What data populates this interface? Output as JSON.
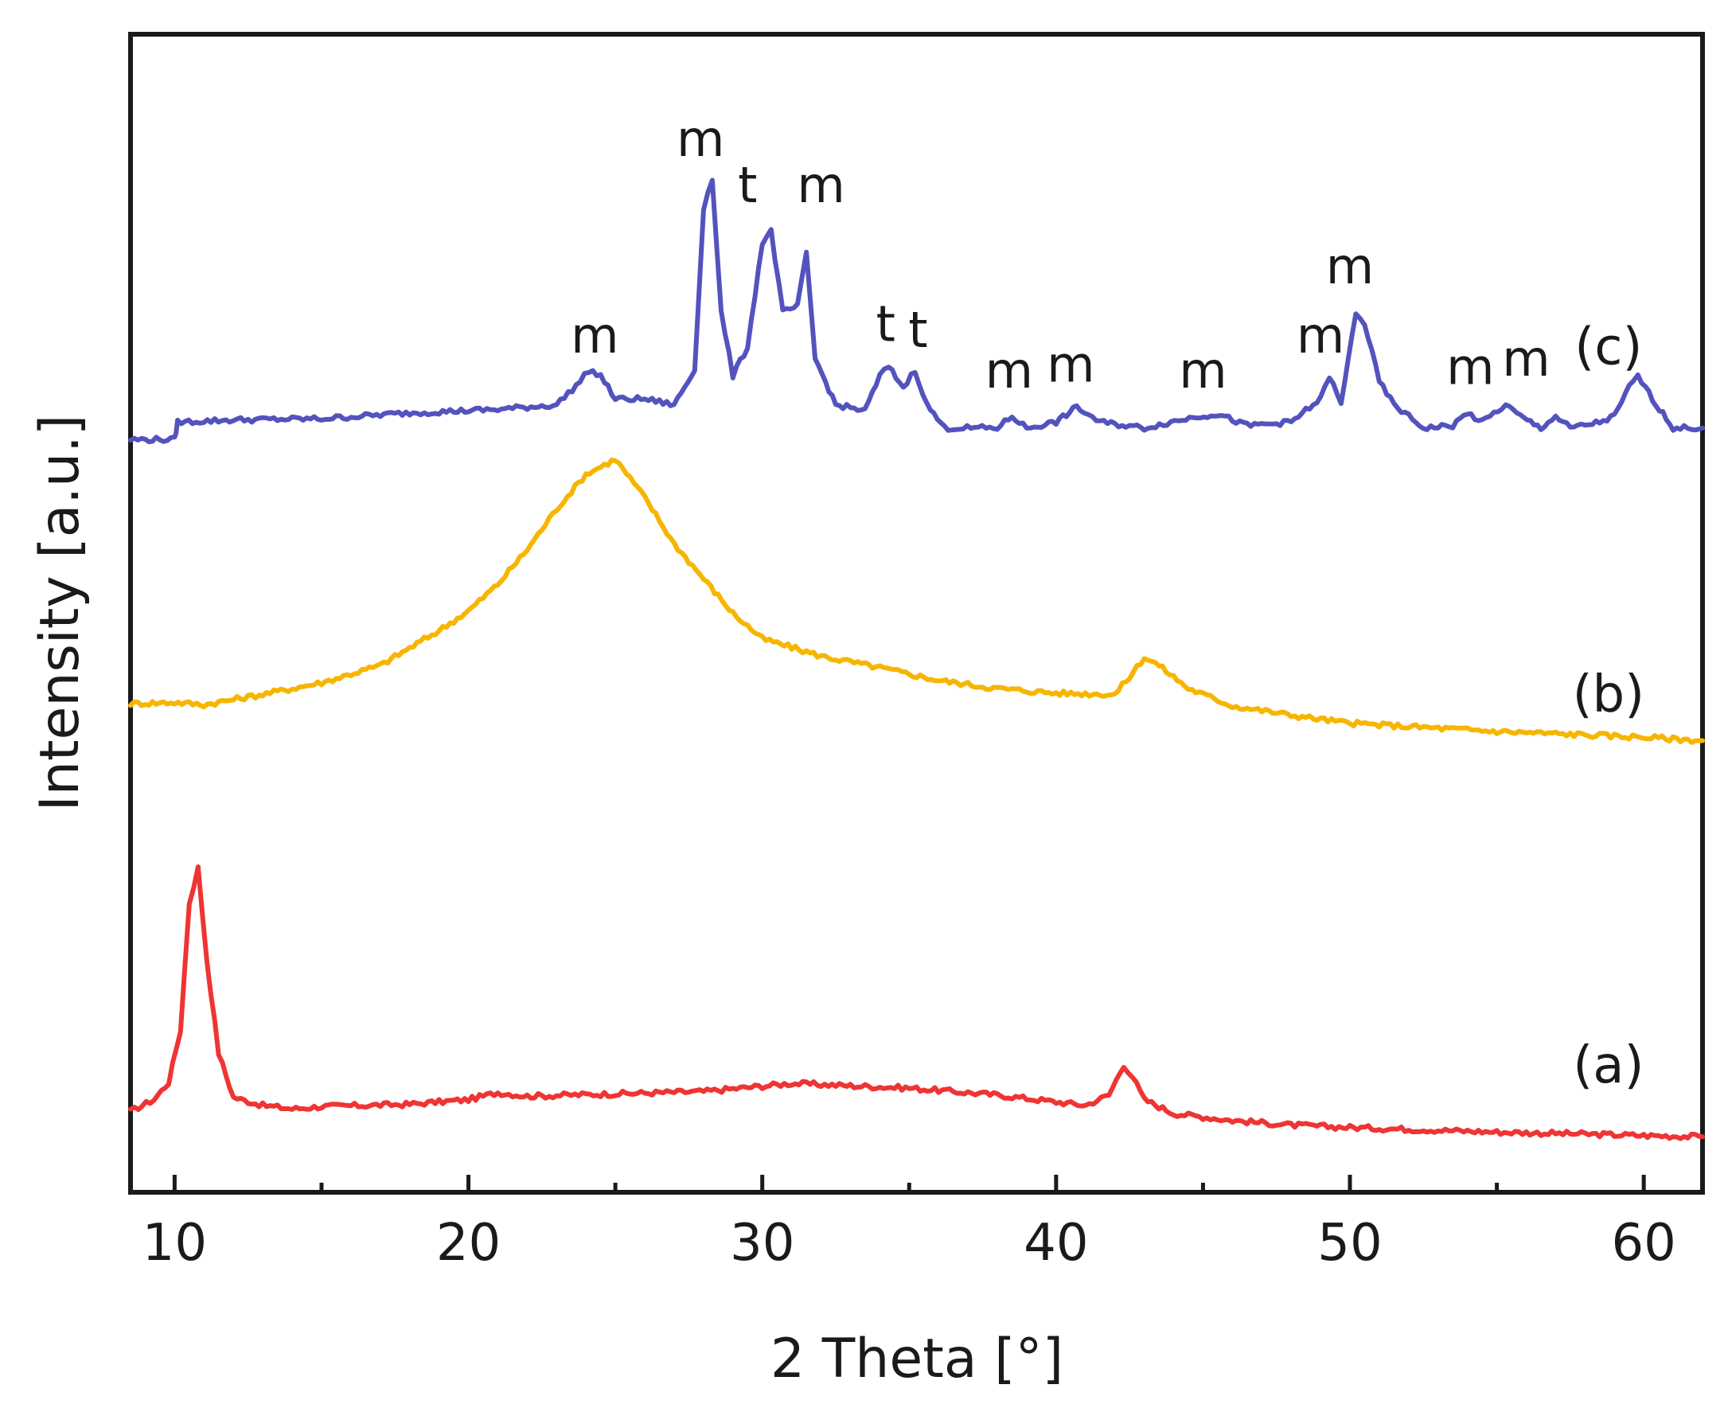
{
  "chart_data": {
    "type": "line",
    "xlabel": "2 Theta [°]",
    "ylabel": "Intensity [a.u.]",
    "xlim": [
      8.5,
      62
    ],
    "ylim": [
      0,
      100
    ],
    "x_ticks": [
      10,
      20,
      30,
      40,
      50,
      60
    ],
    "x_tick_labels": [
      "10",
      "20",
      "30",
      "40",
      "50",
      "60"
    ],
    "y_ticks_shown": false,
    "grid": false,
    "legend": "none",
    "series": [
      {
        "name": "(a)",
        "color": "#ef3434",
        "points": [
          [
            8.5,
            7.0
          ],
          [
            9.3,
            8.0
          ],
          [
            9.8,
            9.5
          ],
          [
            10.2,
            14
          ],
          [
            10.5,
            25
          ],
          [
            10.8,
            28
          ],
          [
            11.1,
            20
          ],
          [
            11.5,
            12
          ],
          [
            12,
            8.2
          ],
          [
            13,
            7.5
          ],
          [
            14,
            7.2
          ],
          [
            15,
            7.4
          ],
          [
            18,
            7.6
          ],
          [
            20,
            8.0
          ],
          [
            21,
            8.6
          ],
          [
            22,
            8.3
          ],
          [
            25,
            8.5
          ],
          [
            28,
            8.7
          ],
          [
            31,
            9.4
          ],
          [
            33,
            9.2
          ],
          [
            35,
            9.0
          ],
          [
            38,
            8.4
          ],
          [
            40,
            7.8
          ],
          [
            41,
            7.5
          ],
          [
            41.8,
            8.4
          ],
          [
            42.3,
            11.0
          ],
          [
            42.6,
            10.0
          ],
          [
            43,
            8.0
          ],
          [
            44,
            6.8
          ],
          [
            46,
            6.2
          ],
          [
            48,
            5.8
          ],
          [
            50,
            5.6
          ],
          [
            55,
            5.2
          ],
          [
            60,
            4.9
          ],
          [
            62,
            4.8
          ]
        ]
      },
      {
        "name": "(b)",
        "color": "#f7b500",
        "points": [
          [
            8.5,
            42.2
          ],
          [
            10,
            42.3
          ],
          [
            11,
            42.1
          ],
          [
            13,
            43.0
          ],
          [
            15,
            44.0
          ],
          [
            17,
            45.5
          ],
          [
            18,
            47.0
          ],
          [
            19,
            48.5
          ],
          [
            20,
            50.2
          ],
          [
            21,
            52.5
          ],
          [
            22,
            55.5
          ],
          [
            23,
            59.0
          ],
          [
            24,
            62.0
          ],
          [
            25,
            63.3
          ],
          [
            26,
            60.0
          ],
          [
            27,
            56.0
          ],
          [
            28,
            53.0
          ],
          [
            29,
            50.0
          ],
          [
            30,
            47.8
          ],
          [
            32,
            46.3
          ],
          [
            34,
            45.3
          ],
          [
            36,
            44.2
          ],
          [
            38,
            43.5
          ],
          [
            40,
            43.1
          ],
          [
            42,
            43.0
          ],
          [
            42.5,
            44.5
          ],
          [
            43,
            46.2
          ],
          [
            43.5,
            45.5
          ],
          [
            44.5,
            43.5
          ],
          [
            46,
            42.0
          ],
          [
            48,
            41.2
          ],
          [
            50,
            40.5
          ],
          [
            55,
            39.8
          ],
          [
            60,
            39.3
          ],
          [
            62,
            39.0
          ]
        ]
      },
      {
        "name": "(c)",
        "color": "#5353be",
        "points": [
          [
            8.5,
            65.0
          ],
          [
            10,
            65.0
          ],
          [
            10.1,
            66.5
          ],
          [
            12,
            66.7
          ],
          [
            15,
            66.8
          ],
          [
            18,
            67.3
          ],
          [
            21,
            67.6
          ],
          [
            23,
            68.0
          ],
          [
            23.8,
            70.0
          ],
          [
            24.1,
            71.0
          ],
          [
            24.5,
            70.5
          ],
          [
            25,
            68.5
          ],
          [
            26,
            68.5
          ],
          [
            27,
            68.0
          ],
          [
            27.7,
            71.0
          ],
          [
            28.0,
            85.0
          ],
          [
            28.3,
            87.5
          ],
          [
            28.6,
            76.0
          ],
          [
            29,
            70.5
          ],
          [
            29.5,
            73.0
          ],
          [
            30,
            82.0
          ],
          [
            30.3,
            83.0
          ],
          [
            30.7,
            76.0
          ],
          [
            31.2,
            76.5
          ],
          [
            31.5,
            81.0
          ],
          [
            31.8,
            72.0
          ],
          [
            32.5,
            68.0
          ],
          [
            33.5,
            67.5
          ],
          [
            34.0,
            70.5
          ],
          [
            34.3,
            71.3
          ],
          [
            34.8,
            69.5
          ],
          [
            35.2,
            71.0
          ],
          [
            35.6,
            68.0
          ],
          [
            36.2,
            66.0
          ],
          [
            38,
            66.0
          ],
          [
            38.5,
            67.0
          ],
          [
            39,
            66.0
          ],
          [
            40,
            66.5
          ],
          [
            40.7,
            67.8
          ],
          [
            41.5,
            66.5
          ],
          [
            43,
            66.0
          ],
          [
            44.8,
            67.0
          ],
          [
            45.5,
            67.2
          ],
          [
            46.5,
            66.2
          ],
          [
            48,
            66.5
          ],
          [
            49.0,
            68.5
          ],
          [
            49.3,
            70.5
          ],
          [
            49.7,
            68.0
          ],
          [
            50.2,
            76.0
          ],
          [
            50.5,
            75.0
          ],
          [
            51.0,
            70.0
          ],
          [
            51.5,
            68.0
          ],
          [
            52.5,
            66.0
          ],
          [
            53.5,
            66.2
          ],
          [
            54.0,
            67.3
          ],
          [
            54.5,
            66.5
          ],
          [
            55.3,
            68.0
          ],
          [
            55.8,
            67.0
          ],
          [
            56.5,
            66.0
          ],
          [
            57.0,
            67.0
          ],
          [
            57.5,
            66.0
          ],
          [
            58.5,
            66.5
          ],
          [
            59.0,
            67.0
          ],
          [
            59.5,
            69.5
          ],
          [
            59.8,
            70.5
          ],
          [
            60.3,
            68.5
          ],
          [
            61,
            66.0
          ],
          [
            62,
            66.0
          ]
        ]
      }
    ],
    "curve_labels": [
      {
        "text": "(a)",
        "x": 58.8,
        "y": 9.5
      },
      {
        "text": "(b)",
        "x": 58.8,
        "y": 41.5
      },
      {
        "text": "(c)",
        "x": 58.8,
        "y": 71.5
      }
    ],
    "peak_labels": [
      {
        "text": "m",
        "x": 24.3,
        "y": 72.5
      },
      {
        "text": "m",
        "x": 27.9,
        "y": 89.5
      },
      {
        "text": "t",
        "x": 29.5,
        "y": 85.5
      },
      {
        "text": "m",
        "x": 32.0,
        "y": 85.5
      },
      {
        "text": "t",
        "x": 34.2,
        "y": 73.5
      },
      {
        "text": "t",
        "x": 35.3,
        "y": 73.0
      },
      {
        "text": "m",
        "x": 38.4,
        "y": 69.5
      },
      {
        "text": "m",
        "x": 40.5,
        "y": 70.0
      },
      {
        "text": "m",
        "x": 45.0,
        "y": 69.5
      },
      {
        "text": "m",
        "x": 49.0,
        "y": 72.5
      },
      {
        "text": "m",
        "x": 50.0,
        "y": 78.5
      },
      {
        "text": "m",
        "x": 54.1,
        "y": 69.8
      },
      {
        "text": "m",
        "x": 56.0,
        "y": 70.5
      }
    ]
  }
}
